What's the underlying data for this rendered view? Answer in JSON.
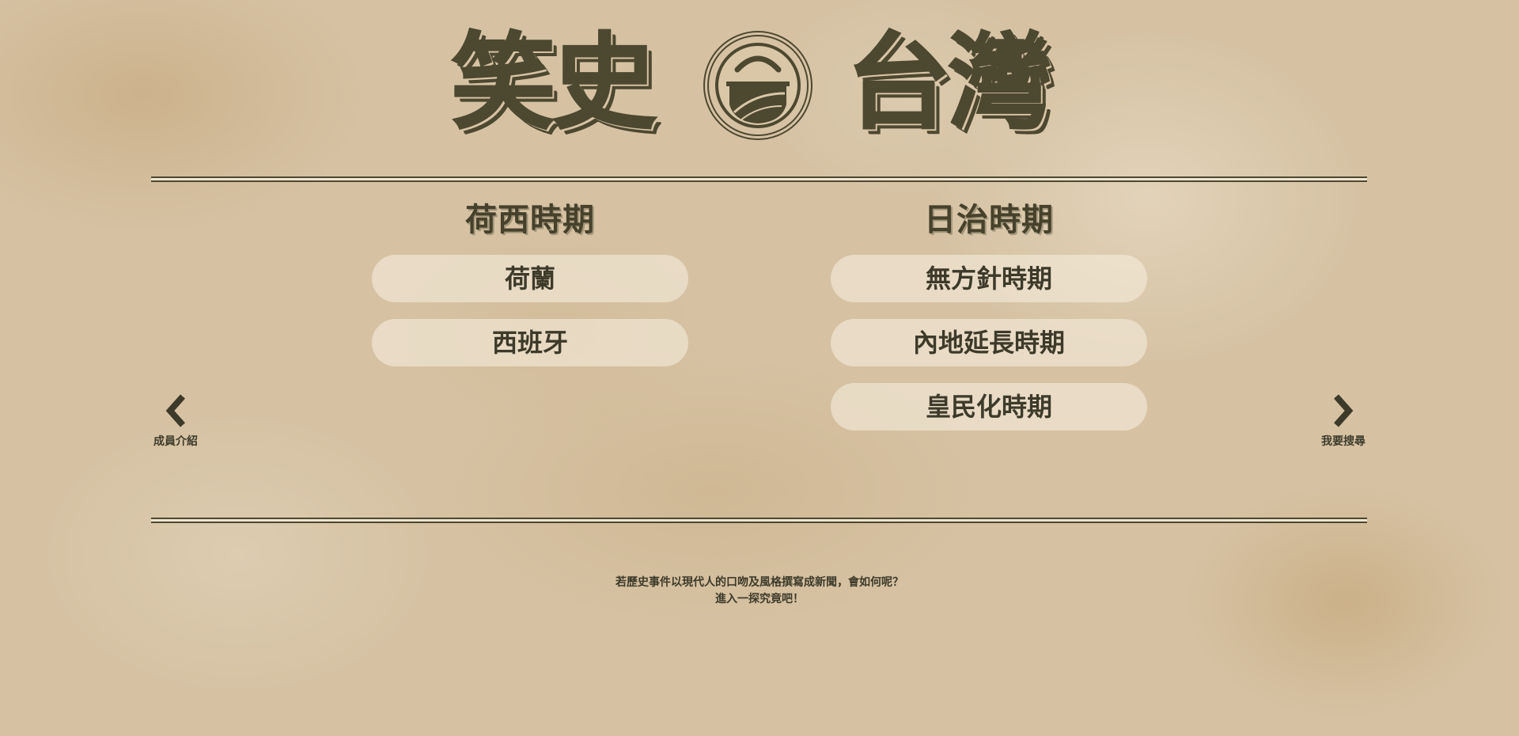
{
  "logo": {
    "left_text": "笑史",
    "right_text": "台灣",
    "emblem_char": "台",
    "color": "#4d4830"
  },
  "eras": [
    {
      "title": "荷西時期",
      "items": [
        "荷蘭",
        "西班牙"
      ]
    },
    {
      "title": "日治時期",
      "items": [
        "無方針時期",
        "內地延長時期",
        "皇民化時期"
      ]
    }
  ],
  "nav": {
    "prev_label": "成員介紹",
    "prev_icon": "chevron-left-icon",
    "next_label": "我要搜尋",
    "next_icon": "chevron-right-icon"
  },
  "tagline": {
    "line1": "若歷史事件以現代人的口吻及風格撰寫成新聞，會如何呢？",
    "line2": "進入一探究竟吧！"
  },
  "colors": {
    "background": "#d6c2a3",
    "ink": "#4d4830",
    "pill": "#f6eedf"
  }
}
